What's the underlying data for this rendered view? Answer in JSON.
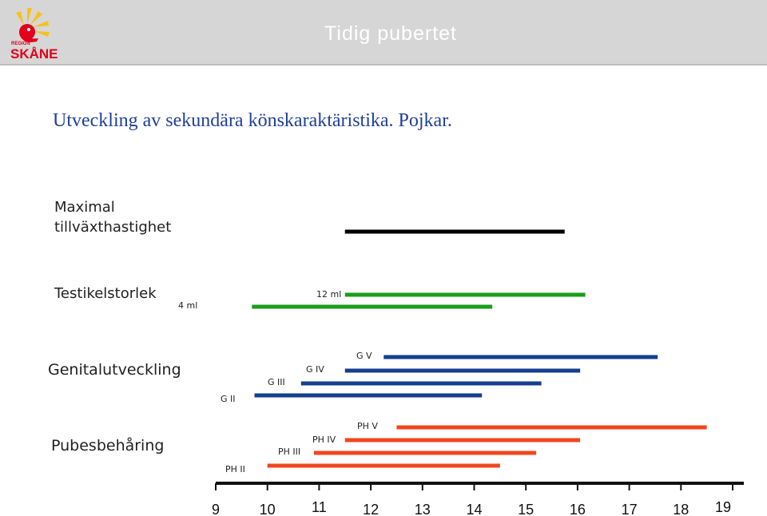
{
  "header": {
    "brand_top": "REGION",
    "brand_name": "SKÅNE",
    "title": "Tidig pubertet"
  },
  "subtitle": "Utveckling av sekundära könskaraktäristika. Pojkar.",
  "colors": {
    "header_bg": "#d6d6d6",
    "logo_yellow": "#f6c21b",
    "logo_red": "#e2001a",
    "subtitle": "#1f3f9a",
    "black_bar": "#000000",
    "green_bar": "#1a9e1a",
    "blue_bar": "#153e8e",
    "red_bar": "#f0461e"
  },
  "chart_data": {
    "type": "bar",
    "orientation": "horizontal-range",
    "xlabel": "",
    "ylabel": "",
    "xlim": [
      9,
      19
    ],
    "x_ticks": [
      "9",
      "10",
      "11",
      "12",
      "13",
      "14",
      "15",
      "16",
      "17",
      "18",
      "19"
    ],
    "groups": [
      {
        "label": "Maximal tillväxthastighet",
        "label_lines": [
          "Maximal",
          "tillväxthastighet"
        ],
        "color": "#000000",
        "bars": [
          {
            "label": "",
            "start": 11.5,
            "end": 15.75
          }
        ]
      },
      {
        "label": "Testikelstorlek",
        "label_lines": [
          "Testikelstorlek"
        ],
        "color": "#1a9e1a",
        "bars": [
          {
            "label": "12 ml",
            "start": 11.5,
            "end": 16.15
          },
          {
            "label": "4 ml",
            "start": 9.7,
            "end": 14.35
          }
        ]
      },
      {
        "label": "Genitalutveckling",
        "label_lines": [
          "Genitalutveckling"
        ],
        "color": "#153e8e",
        "bars": [
          {
            "label": "G V",
            "start": 12.25,
            "end": 17.55
          },
          {
            "label": "G IV",
            "start": 11.5,
            "end": 16.05
          },
          {
            "label": "G III",
            "start": 10.65,
            "end": 15.3
          },
          {
            "label": "G II",
            "start": 9.75,
            "end": 14.15
          }
        ]
      },
      {
        "label": "Pubesbehåring",
        "label_lines": [
          "Pubesbehåring"
        ],
        "color": "#f0461e",
        "bars": [
          {
            "label": "PH V",
            "start": 12.5,
            "end": 18.5
          },
          {
            "label": "PH IV",
            "start": 11.5,
            "end": 16.05
          },
          {
            "label": "PH III",
            "start": 10.9,
            "end": 15.2
          },
          {
            "label": "PH II",
            "start": 10.0,
            "end": 14.5
          }
        ]
      }
    ]
  }
}
